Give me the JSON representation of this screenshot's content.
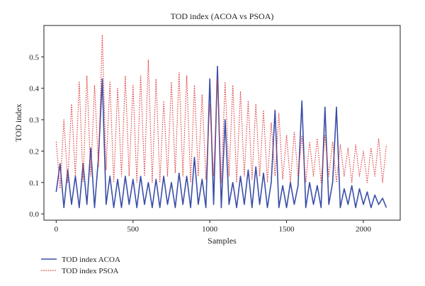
{
  "chart_data": {
    "type": "line",
    "title": "TOD index (ACOA vs PSOA)",
    "xlabel": "Samples",
    "ylabel": "TOD index",
    "xlim": [
      -80,
      2240
    ],
    "ylim": [
      -0.02,
      0.6
    ],
    "xticks": [
      0,
      500,
      1000,
      1500,
      2000
    ],
    "yticks": [
      0.0,
      0.1,
      0.2,
      0.3,
      0.4,
      0.5
    ],
    "ytick_labels": [
      "0.0",
      "0.1",
      "0.2",
      "0.3",
      "0.4",
      "0.5"
    ],
    "grid": false,
    "legend_position": "below-left",
    "series": [
      {
        "name": "TOD index ACOA",
        "color": "#3a4ea8",
        "style": "solid",
        "x": [
          0,
          25,
          50,
          75,
          100,
          125,
          150,
          175,
          200,
          225,
          250,
          275,
          300,
          325,
          350,
          375,
          400,
          425,
          450,
          475,
          500,
          525,
          550,
          575,
          600,
          625,
          650,
          675,
          700,
          725,
          750,
          775,
          800,
          825,
          850,
          875,
          900,
          925,
          950,
          975,
          1000,
          1025,
          1050,
          1075,
          1100,
          1125,
          1150,
          1175,
          1200,
          1225,
          1250,
          1275,
          1300,
          1325,
          1350,
          1375,
          1400,
          1425,
          1450,
          1475,
          1500,
          1525,
          1550,
          1575,
          1600,
          1625,
          1650,
          1675,
          1700,
          1725,
          1750,
          1775,
          1800,
          1825,
          1850,
          1875,
          1900,
          1925,
          1950,
          1975,
          2000,
          2025,
          2050,
          2075,
          2100,
          2125,
          2150
        ],
        "y": [
          0.07,
          0.16,
          0.02,
          0.14,
          0.03,
          0.12,
          0.02,
          0.16,
          0.03,
          0.21,
          0.02,
          0.18,
          0.43,
          0.03,
          0.12,
          0.02,
          0.11,
          0.02,
          0.12,
          0.03,
          0.11,
          0.02,
          0.12,
          0.03,
          0.1,
          0.02,
          0.11,
          0.02,
          0.12,
          0.03,
          0.1,
          0.02,
          0.13,
          0.03,
          0.12,
          0.02,
          0.18,
          0.03,
          0.11,
          0.02,
          0.43,
          0.03,
          0.47,
          0.02,
          0.3,
          0.03,
          0.1,
          0.02,
          0.12,
          0.03,
          0.14,
          0.02,
          0.15,
          0.03,
          0.13,
          0.02,
          0.1,
          0.33,
          0.02,
          0.09,
          0.02,
          0.1,
          0.03,
          0.09,
          0.36,
          0.02,
          0.1,
          0.03,
          0.09,
          0.02,
          0.34,
          0.03,
          0.1,
          0.34,
          0.02,
          0.08,
          0.03,
          0.09,
          0.02,
          0.08,
          0.03,
          0.07,
          0.02,
          0.06,
          0.03,
          0.05,
          0.02
        ]
      },
      {
        "name": "TOD index PSOA",
        "color": "#e03a3a",
        "style": "dotted",
        "x": [
          0,
          25,
          50,
          75,
          100,
          125,
          150,
          175,
          200,
          225,
          250,
          275,
          300,
          325,
          350,
          375,
          400,
          425,
          450,
          475,
          500,
          525,
          550,
          575,
          600,
          625,
          650,
          675,
          700,
          725,
          750,
          775,
          800,
          825,
          850,
          875,
          900,
          925,
          950,
          975,
          1000,
          1025,
          1050,
          1075,
          1100,
          1125,
          1150,
          1175,
          1200,
          1225,
          1250,
          1275,
          1300,
          1325,
          1350,
          1375,
          1400,
          1425,
          1450,
          1475,
          1500,
          1525,
          1550,
          1575,
          1600,
          1625,
          1650,
          1675,
          1700,
          1725,
          1750,
          1775,
          1800,
          1825,
          1850,
          1875,
          1900,
          1925,
          1950,
          1975,
          2000,
          2025,
          2050,
          2075,
          2100,
          2125,
          2150
        ],
        "y": [
          0.23,
          0.08,
          0.3,
          0.1,
          0.35,
          0.12,
          0.42,
          0.1,
          0.44,
          0.12,
          0.41,
          0.15,
          0.57,
          0.14,
          0.42,
          0.1,
          0.4,
          0.12,
          0.44,
          0.12,
          0.41,
          0.1,
          0.44,
          0.12,
          0.49,
          0.1,
          0.43,
          0.1,
          0.36,
          0.12,
          0.42,
          0.13,
          0.45,
          0.12,
          0.44,
          0.1,
          0.41,
          0.12,
          0.38,
          0.11,
          0.35,
          0.12,
          0.43,
          0.1,
          0.42,
          0.12,
          0.41,
          0.1,
          0.39,
          0.12,
          0.36,
          0.11,
          0.35,
          0.12,
          0.33,
          0.1,
          0.29,
          0.12,
          0.32,
          0.11,
          0.25,
          0.1,
          0.26,
          0.12,
          0.25,
          0.1,
          0.23,
          0.12,
          0.24,
          0.1,
          0.25,
          0.12,
          0.23,
          0.1,
          0.22,
          0.12,
          0.21,
          0.1,
          0.22,
          0.12,
          0.2,
          0.1,
          0.21,
          0.12,
          0.24,
          0.1,
          0.22
        ]
      }
    ]
  }
}
